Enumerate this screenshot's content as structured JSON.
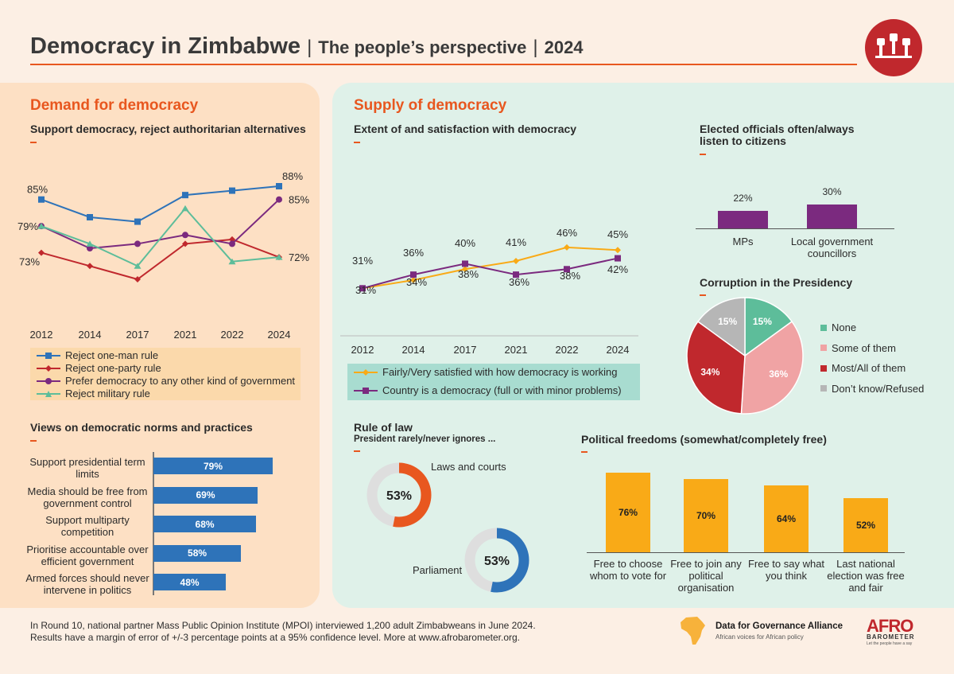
{
  "header": {
    "title": "Democracy in Zimbabwe",
    "subtitle": "The people’s perspective",
    "year": "2024",
    "separator": "|"
  },
  "demand": {
    "title": "Demand for democracy",
    "support_title": "Support democracy, reject authoritarian alternatives",
    "norms_title": "Views on democratic norms and practices"
  },
  "supply": {
    "title": "Supply of democracy",
    "extent_title": "Extent of and satisfaction with democracy",
    "elected_title": "Elected officials often/always listen to citizens",
    "corruption_title": "Corruption in the Presidency",
    "rule_title": "Rule of law",
    "rule_subtitle": "President rarely/never ignores ...",
    "freedoms_title": "Political freedoms (somewhat/completely free)"
  },
  "colors": {
    "orange": "#e8571f",
    "blue": "#2e73b9",
    "red": "#c0282d",
    "purple": "#7b2a7f",
    "teal": "#5dbd9a",
    "amber": "#f9aa17",
    "pink": "#f0a3a4"
  },
  "chart_data": [
    {
      "type": "line",
      "x": [
        "2012",
        "2014",
        "2017",
        "2021",
        "2022",
        "2024"
      ],
      "series": [
        {
          "name": "Reject one-man rule",
          "values": [
            85,
            81,
            80,
            86,
            87,
            88
          ]
        },
        {
          "name": "Reject one-party rule",
          "values": [
            73,
            70,
            67,
            75,
            76,
            72
          ]
        },
        {
          "name": "Prefer democracy to any other kind of government",
          "values": [
            79,
            74,
            75,
            77,
            75,
            85
          ]
        },
        {
          "name": "Reject military rule",
          "values": [
            79,
            75,
            70,
            83,
            71,
            72
          ]
        }
      ],
      "data_labels": [
        {
          "text": "85%"
        },
        {
          "text": "79%"
        },
        {
          "text": "73%"
        },
        {
          "text": "88%"
        },
        {
          "text": "85%"
        },
        {
          "text": "72%"
        }
      ],
      "ylim": [
        60,
        95
      ]
    },
    {
      "type": "line",
      "x": [
        "2012",
        "2014",
        "2017",
        "2021",
        "2022",
        "2024"
      ],
      "series": [
        {
          "name": "Fairly/Very satisfied with how democracy is working",
          "values": [
            31,
            34,
            38,
            41,
            46,
            45
          ]
        },
        {
          "name": "Country is a democracy (full or with minor problems)",
          "values": [
            31,
            36,
            40,
            36,
            38,
            42
          ]
        }
      ],
      "data_labels_top": [
        "31%",
        "36%",
        "40%",
        "41%",
        "46%",
        "45%"
      ],
      "data_labels_bottom": [
        "31%",
        "34%",
        "38%",
        "36%",
        "38%",
        "42%"
      ],
      "ylim": [
        20,
        55
      ]
    },
    {
      "type": "bar",
      "orientation": "horizontal",
      "categories": [
        "Support presidential term limits",
        "Media should be free from government control",
        "Support multiparty competition",
        "Prioritise accountable over efficient government",
        "Armed forces should never intervene in politics"
      ],
      "values": [
        79,
        69,
        68,
        58,
        48
      ],
      "labels": [
        "79%",
        "69%",
        "68%",
        "58%",
        "48%"
      ]
    },
    {
      "type": "bar",
      "categories": [
        "MPs",
        "Local government councillors"
      ],
      "values": [
        22,
        30
      ],
      "labels": [
        "22%",
        "30%"
      ]
    },
    {
      "type": "pie",
      "categories": [
        "None",
        "Some of them",
        "Most/All of them",
        "Don’t know/Refused"
      ],
      "values": [
        15,
        36,
        34,
        15
      ],
      "labels": [
        "15%",
        "36%",
        "34%",
        "15%"
      ],
      "legend": "right"
    },
    {
      "type": "pie",
      "variant": "donut",
      "items": [
        {
          "name": "Laws and courts",
          "value": 53,
          "label": "53%"
        },
        {
          "name": "Parliament",
          "value": 53,
          "label": "53%"
        }
      ]
    },
    {
      "type": "bar",
      "categories": [
        "Free to choose whom to vote for",
        "Free to join any political organisation",
        "Free to say what you think",
        "Last national election was free and fair"
      ],
      "values": [
        76,
        70,
        64,
        52
      ],
      "labels": [
        "76%",
        "70%",
        "64%",
        "52%"
      ]
    }
  ],
  "footer": {
    "line1": "In Round 10, national partner Mass Public Opinion Institute (MPOI) interviewed 1,200 adult Zimbabweans in June 2024.",
    "line2": "Results have a margin of error of +/-3 percentage points at a 95% confidence level. More at www.afrobarometer.org.",
    "dga_name": "Data for Governance Alliance",
    "dga_tagline": "African voices for African policy",
    "afro": "AFRO",
    "barometer": "BAROMETER",
    "afro_tagline": "Let the people have a say"
  }
}
